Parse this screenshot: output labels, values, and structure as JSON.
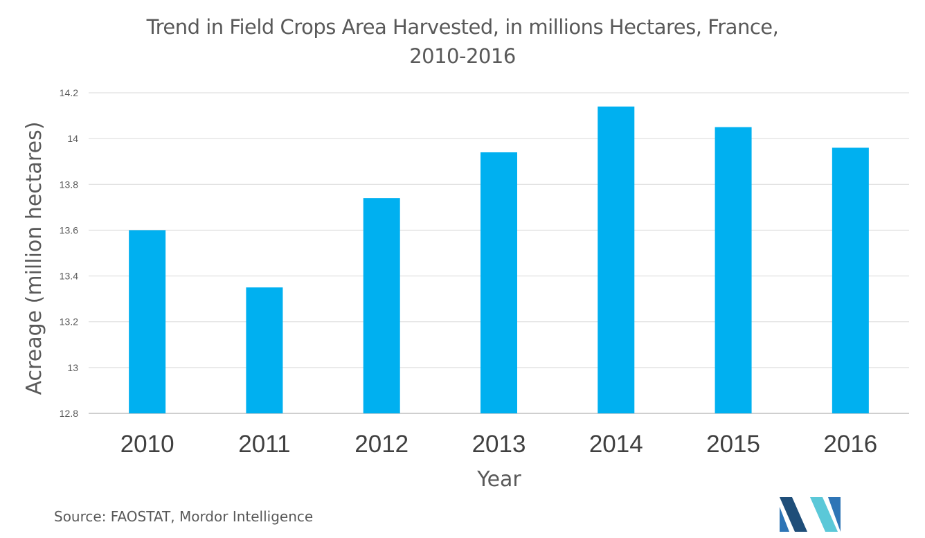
{
  "chart_data": {
    "type": "bar",
    "title_lines": [
      "Trend in Field Crops Area Harvested, in millions Hectares, France,",
      "2010-2016"
    ],
    "xlabel": "Year",
    "ylabel": "Acreage (million hectares)",
    "categories": [
      "2010",
      "2011",
      "2012",
      "2013",
      "2014",
      "2015",
      "2016"
    ],
    "values": [
      13.6,
      13.35,
      13.74,
      13.94,
      14.14,
      14.05,
      13.96
    ],
    "ylim": [
      12.8,
      14.2
    ],
    "yticks": [
      "12.8",
      "13",
      "13.2",
      "13.4",
      "13.6",
      "13.8",
      "14",
      "14.2"
    ],
    "grid": true,
    "legend": "none",
    "bar_color": "#00B0F0"
  },
  "source": "Source: FAOSTAT, Mordor Intelligence",
  "logo": {
    "icon": "mordor-intelligence-logo-icon",
    "colors": [
      "#1F4E79",
      "#2E75B6",
      "#5BC8D8"
    ]
  }
}
